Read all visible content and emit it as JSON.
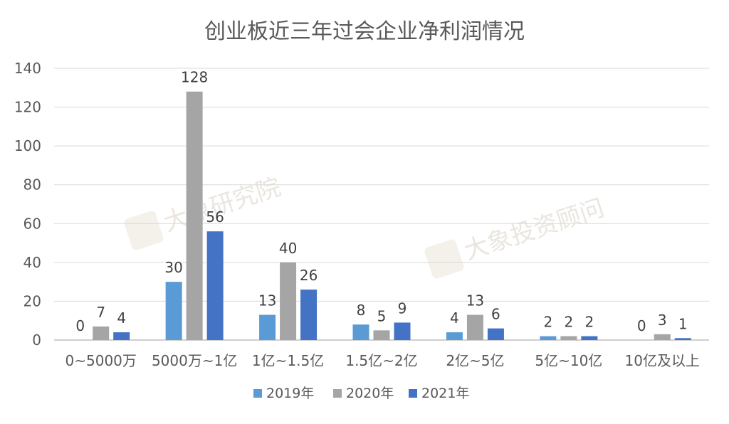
{
  "chart_data": {
    "type": "bar",
    "title": "创业板近三年过会企业净利润情况",
    "categories": [
      "0~5000万",
      "5000万~1亿",
      "1亿~1.5亿",
      "1.5亿~2亿",
      "2亿~5亿",
      "5亿~10亿",
      "10亿及以上"
    ],
    "series": [
      {
        "name": "2019年",
        "color": "#5b9bd5",
        "values": [
          0,
          30,
          13,
          8,
          4,
          2,
          0
        ]
      },
      {
        "name": "2020年",
        "color": "#a5a5a5",
        "values": [
          7,
          128,
          40,
          5,
          13,
          2,
          3
        ]
      },
      {
        "name": "2021年",
        "color": "#4472c4",
        "values": [
          4,
          56,
          26,
          9,
          6,
          2,
          1
        ]
      }
    ],
    "ylim": [
      0,
      140
    ],
    "yticks": [
      0,
      20,
      40,
      60,
      80,
      100,
      120,
      140
    ],
    "grid": true,
    "legend_position": "bottom",
    "xlabel": "",
    "ylabel": ""
  },
  "watermarks": [
    "大象研究院",
    "大象投资顾问"
  ]
}
